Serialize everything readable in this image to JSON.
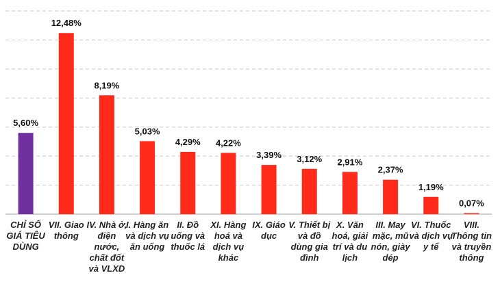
{
  "chart_data": {
    "type": "bar",
    "categories": [
      "CHỈ SỐ GIÁ TIÊU DÙNG",
      "VII. Giao thông",
      "IV. Nhà ở, điện nước, chất đốt và VLXD",
      "I. Hàng ăn và dịch vụ ăn uống",
      "II. Đồ uống và thuốc lá",
      "XI. Hàng hoá và dịch vụ khác",
      "IX. Giáo dục",
      "V. Thiết bị và đồ dùng gia đình",
      "X. Văn hoá, giải trí và du lịch",
      "III. May mặc, mũ nón, giày dép",
      "VI. Thuốc và dịch vụ y tế",
      "VIII. Thông tin và truyền thông"
    ],
    "values": [
      5.6,
      12.48,
      8.19,
      5.03,
      4.29,
      4.22,
      3.39,
      3.12,
      2.91,
      2.37,
      1.19,
      0.07
    ],
    "value_labels": [
      "5,60%",
      "12,48%",
      "8,19%",
      "5,03%",
      "4,29%",
      "4,22%",
      "3,39%",
      "3,12%",
      "2,91%",
      "2,37%",
      "1,19%",
      "0,07%"
    ],
    "colors": [
      "#7030a0",
      "#ff2a1a",
      "#ff2a1a",
      "#ff2a1a",
      "#ff2a1a",
      "#ff2a1a",
      "#ff2a1a",
      "#ff2a1a",
      "#ff2a1a",
      "#ff2a1a",
      "#ff2a1a",
      "#ff2a1a"
    ],
    "ylim": [
      0,
      14
    ],
    "yticks": [
      0,
      2,
      4,
      6,
      8,
      10,
      12,
      14
    ],
    "grid": true
  }
}
